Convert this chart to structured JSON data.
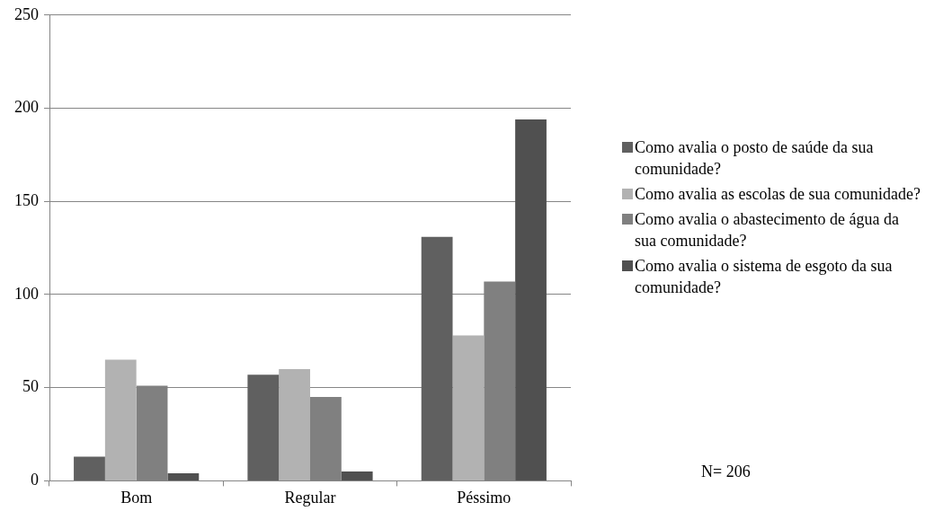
{
  "chart_data": {
    "type": "bar",
    "categories": [
      "Bom",
      "Regular",
      "Péssimo"
    ],
    "series": [
      {
        "name": "Como avalia o posto de saúde da sua comunidade?",
        "color": "#606060",
        "values": [
          13,
          57,
          131
        ]
      },
      {
        "name": "Como avalia as escolas de sua comunidade?",
        "color": "#b2b2b2",
        "values": [
          65,
          60,
          78
        ]
      },
      {
        "name": "Como avalia o abastecimento de água da sua comunidade?",
        "color": "#808080",
        "values": [
          51,
          45,
          107
        ]
      },
      {
        "name": "Como avalia o sistema de esgoto da sua comunidade?",
        "color": "#505050",
        "values": [
          4,
          5,
          194
        ]
      }
    ],
    "ylim": [
      0,
      250
    ],
    "yticks": [
      0,
      50,
      100,
      150,
      200,
      250
    ],
    "grid": "y",
    "legend": "right",
    "annotations": [
      "N= 206"
    ]
  }
}
